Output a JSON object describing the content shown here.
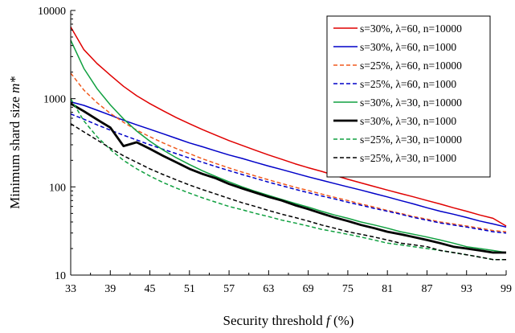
{
  "chart_data": {
    "type": "line",
    "xlabel": "Security threshold",
    "xlabel_var": "f",
    "xlabel_unit": " (%)",
    "ylabel": "Minimum shard size ",
    "ylabel_var": "m*",
    "y_scale": "log",
    "ylim": [
      10,
      10000
    ],
    "xlim": [
      33,
      99
    ],
    "x_ticks": [
      33,
      39,
      45,
      51,
      57,
      63,
      69,
      75,
      81,
      87,
      93,
      99
    ],
    "y_ticks": [
      10,
      100,
      1000,
      10000
    ],
    "grid": false,
    "legend_position": "top-right",
    "x": [
      33,
      35,
      37,
      39,
      41,
      43,
      45,
      47,
      49,
      51,
      53,
      55,
      57,
      59,
      61,
      63,
      65,
      67,
      69,
      71,
      73,
      75,
      77,
      79,
      81,
      83,
      85,
      87,
      89,
      91,
      93,
      95,
      97,
      99
    ],
    "series": [
      {
        "name": "s=30%, λ=60, n=10000",
        "color": "#e00000",
        "dash": "solid",
        "width": 1.5,
        "values": [
          6500,
          3600,
          2500,
          1850,
          1380,
          1080,
          880,
          730,
          610,
          520,
          445,
          385,
          335,
          295,
          260,
          230,
          205,
          183,
          165,
          150,
          135,
          122,
          111,
          101,
          92,
          84,
          77,
          70,
          64,
          58,
          53,
          48,
          44,
          36
        ]
      },
      {
        "name": "s=30%, λ=60, n=1000",
        "color": "#0000c8",
        "dash": "solid",
        "width": 1.5,
        "values": [
          920,
          840,
          740,
          650,
          570,
          505,
          450,
          400,
          355,
          315,
          285,
          255,
          230,
          210,
          190,
          172,
          157,
          143,
          130,
          119,
          109,
          100,
          92,
          84,
          77,
          70,
          64,
          58,
          53,
          49,
          45,
          41,
          38,
          35
        ]
      },
      {
        "name": "s=25%, λ=60, n=10000",
        "color": "#f05a1e",
        "dash": "5,3",
        "width": 1.5,
        "values": [
          1950,
          1250,
          900,
          680,
          540,
          440,
          370,
          315,
          272,
          238,
          208,
          184,
          164,
          147,
          133,
          120,
          109,
          99,
          91,
          83,
          76,
          70,
          64,
          59,
          54,
          50,
          46,
          43,
          40,
          38,
          36,
          34,
          32,
          31
        ]
      },
      {
        "name": "s=25%, λ=60, n=1000",
        "color": "#0000c8",
        "dash": "5,3",
        "width": 1.5,
        "values": [
          670,
          585,
          505,
          440,
          385,
          340,
          300,
          267,
          238,
          212,
          190,
          170,
          153,
          138,
          125,
          113,
          103,
          94,
          86,
          79,
          73,
          67,
          62,
          57,
          53,
          49,
          45,
          42,
          39,
          37,
          35,
          33,
          31,
          30
        ]
      },
      {
        "name": "s=30%, λ=30, n=10000",
        "color": "#10a040",
        "dash": "solid",
        "width": 1.5,
        "values": [
          4600,
          2200,
          1300,
          850,
          590,
          430,
          330,
          262,
          214,
          179,
          152,
          131,
          114,
          100,
          89,
          80,
          72,
          65,
          59,
          53,
          48,
          44,
          40,
          37,
          34,
          31,
          29,
          27,
          25,
          23,
          21,
          20,
          19,
          18
        ]
      },
      {
        "name": "s=30%, λ=30, n=1000",
        "color": "#000000",
        "dash": "solid",
        "width": 2.8,
        "values": [
          880,
          720,
          580,
          470,
          290,
          320,
          270,
          225,
          190,
          160,
          140,
          125,
          108,
          96,
          86,
          77,
          70,
          62,
          56,
          50,
          45,
          41,
          37,
          34,
          31,
          29,
          27,
          25,
          23,
          21,
          20,
          19,
          18,
          18
        ]
      },
      {
        "name": "s=25%, λ=30, n=10000",
        "color": "#10a040",
        "dash": "5,3",
        "width": 1.5,
        "values": [
          1000,
          560,
          370,
          265,
          200,
          160,
          133,
          112,
          97,
          85,
          75,
          67,
          60,
          55,
          50,
          46,
          42,
          39,
          36,
          33,
          31,
          29,
          27,
          25,
          23,
          22,
          21,
          20,
          19,
          18,
          17,
          16,
          15,
          15
        ]
      },
      {
        "name": "s=25%, λ=30, n=1000",
        "color": "#000000",
        "dash": "5,3",
        "width": 1.5,
        "values": [
          520,
          420,
          340,
          275,
          225,
          190,
          160,
          138,
          120,
          105,
          93,
          83,
          74,
          66,
          60,
          54,
          49,
          45,
          41,
          37,
          34,
          31,
          29,
          27,
          25,
          23,
          22,
          21,
          19,
          18,
          17,
          16,
          15,
          15
        ]
      }
    ]
  }
}
